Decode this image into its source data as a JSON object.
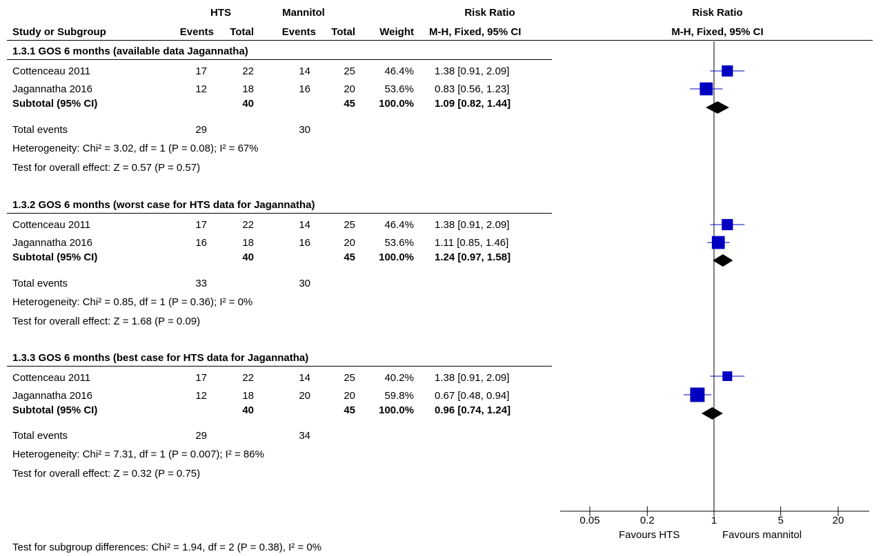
{
  "header": {
    "group_hts": "HTS",
    "group_mannitol": "Mannitol",
    "risk_ratio": "Risk Ratio",
    "plot_title": "Risk Ratio",
    "col_study": "Study or Subgroup",
    "col_events": "Events",
    "col_total": "Total",
    "col_weight": "Weight",
    "col_method": "M-H, Fixed, 95% CI",
    "plot_method": "M-H, Fixed, 95% CI"
  },
  "groups": [
    {
      "title": "1.3.1 GOS 6 months (available data Jagannatha)",
      "rows": [
        {
          "study": "Cottenceau 2011",
          "e1": "17",
          "t1": "22",
          "e2": "14",
          "t2": "25",
          "weight": "46.4%",
          "ci": "1.38 [0.91, 2.09]"
        },
        {
          "study": "Jagannatha 2016",
          "e1": "12",
          "t1": "18",
          "e2": "16",
          "t2": "20",
          "weight": "53.6%",
          "ci": "0.83 [0.56, 1.23]"
        }
      ],
      "subtotal": {
        "label": "Subtotal (95% CI)",
        "t1": "40",
        "t2": "45",
        "weight": "100.0%",
        "ci": "1.09 [0.82, 1.44]"
      },
      "total_events": {
        "label": "Total events",
        "e1": "29",
        "e2": "30"
      },
      "heterogeneity": "Heterogeneity: Chi² = 3.02, df = 1 (P = 0.08); I² = 67%",
      "overall": "Test for overall effect: Z = 0.57 (P = 0.57)"
    },
    {
      "title": "1.3.2 GOS 6 months (worst case for HTS data for Jagannatha)",
      "rows": [
        {
          "study": "Cottenceau 2011",
          "e1": "17",
          "t1": "22",
          "e2": "14",
          "t2": "25",
          "weight": "46.4%",
          "ci": "1.38 [0.91, 2.09]"
        },
        {
          "study": "Jagannatha 2016",
          "e1": "16",
          "t1": "18",
          "e2": "16",
          "t2": "20",
          "weight": "53.6%",
          "ci": "1.11 [0.85, 1.46]"
        }
      ],
      "subtotal": {
        "label": "Subtotal (95% CI)",
        "t1": "40",
        "t2": "45",
        "weight": "100.0%",
        "ci": "1.24 [0.97, 1.58]"
      },
      "total_events": {
        "label": "Total events",
        "e1": "33",
        "e2": "30"
      },
      "heterogeneity": "Heterogeneity: Chi² = 0.85, df = 1 (P = 0.36); I² = 0%",
      "overall": "Test for overall effect: Z = 1.68 (P = 0.09)"
    },
    {
      "title": "1.3.3 GOS 6 months (best case for HTS data for Jagannatha)",
      "rows": [
        {
          "study": "Cottenceau 2011",
          "e1": "17",
          "t1": "22",
          "e2": "14",
          "t2": "25",
          "weight": "40.2%",
          "ci": "1.38 [0.91, 2.09]"
        },
        {
          "study": "Jagannatha 2016",
          "e1": "12",
          "t1": "18",
          "e2": "20",
          "t2": "20",
          "weight": "59.8%",
          "ci": "0.67 [0.48, 0.94]"
        }
      ],
      "subtotal": {
        "label": "Subtotal (95% CI)",
        "t1": "40",
        "t2": "45",
        "weight": "100.0%",
        "ci": "0.96 [0.74, 1.24]"
      },
      "total_events": {
        "label": "Total events",
        "e1": "29",
        "e2": "34"
      },
      "heterogeneity": "Heterogeneity: Chi² = 7.31, df = 1 (P = 0.007); I² = 86%",
      "overall": "Test for overall effect: Z = 0.32 (P = 0.75)"
    }
  ],
  "footer": {
    "subgroup_test": "Test for subgroup differences: Chi² = 1.94, df = 2 (P = 0.38), I² = 0%",
    "favours_left": "Favours HTS",
    "favours_right": "Favours mannitol"
  },
  "chart_data": {
    "type": "forest",
    "scale": "log",
    "xlim": [
      0.05,
      20
    ],
    "ticks": [
      {
        "value": 0.05,
        "label": "0.05"
      },
      {
        "value": 0.2,
        "label": "0.2"
      },
      {
        "value": 1,
        "label": "1"
      },
      {
        "value": 5,
        "label": "5"
      },
      {
        "value": 20,
        "label": "20"
      }
    ],
    "reference_line": 1,
    "studies": [
      {
        "group": 0,
        "name": "Cottenceau 2011",
        "rr": 1.38,
        "lo": 0.91,
        "hi": 2.09,
        "weight": 46.4
      },
      {
        "group": 0,
        "name": "Jagannatha 2016",
        "rr": 0.83,
        "lo": 0.56,
        "hi": 1.23,
        "weight": 53.6
      },
      {
        "group": 1,
        "name": "Cottenceau 2011",
        "rr": 1.38,
        "lo": 0.91,
        "hi": 2.09,
        "weight": 46.4
      },
      {
        "group": 1,
        "name": "Jagannatha 2016",
        "rr": 1.11,
        "lo": 0.85,
        "hi": 1.46,
        "weight": 53.6
      },
      {
        "group": 2,
        "name": "Cottenceau 2011",
        "rr": 1.38,
        "lo": 0.91,
        "hi": 2.09,
        "weight": 40.2
      },
      {
        "group": 2,
        "name": "Jagannatha 2016",
        "rr": 0.67,
        "lo": 0.48,
        "hi": 0.94,
        "weight": 59.8
      }
    ],
    "subtotals": [
      {
        "group": 0,
        "rr": 1.09,
        "lo": 0.82,
        "hi": 1.44
      },
      {
        "group": 1,
        "rr": 1.24,
        "lo": 0.97,
        "hi": 1.58
      },
      {
        "group": 2,
        "rr": 0.96,
        "lo": 0.74,
        "hi": 1.24
      }
    ],
    "marker_color": "#0000c0",
    "diamond_color": "#000000"
  }
}
